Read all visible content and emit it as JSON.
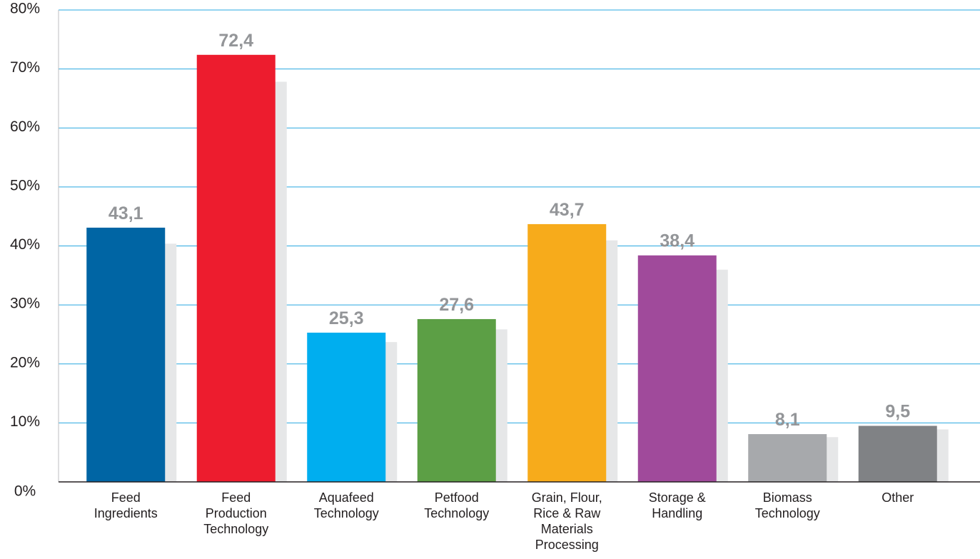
{
  "chart_data": {
    "type": "bar",
    "categories": [
      "Feed Ingredients",
      "Feed Production Technology",
      "Aquafeed Technology",
      "Petfood Technology",
      "Grain, Flour, Rice & Raw Materials Processing",
      "Storage & Handling",
      "Biomass Technology",
      "Other"
    ],
    "values": [
      43.1,
      72.4,
      25.3,
      27.6,
      43.7,
      38.4,
      8.1,
      9.5
    ],
    "value_labels": [
      "43,1",
      "72,4",
      "25,3",
      "27,6",
      "43,7",
      "38,4",
      "8,1",
      "9,5"
    ],
    "colors": [
      "#0065a4",
      "#ed1c2e",
      "#00aeef",
      "#5c9f45",
      "#f7ab1b",
      "#a04a9b",
      "#a7a9ac",
      "#808285"
    ],
    "ylim": [
      0,
      80
    ],
    "yticks": [
      {
        "value": 0,
        "label": "0%"
      },
      {
        "value": 10,
        "label": "10%"
      },
      {
        "value": 20,
        "label": "20%"
      },
      {
        "value": 30,
        "label": "30%"
      },
      {
        "value": 40,
        "label": "40%"
      },
      {
        "value": 50,
        "label": "50%"
      },
      {
        "value": 60,
        "label": "60%"
      },
      {
        "value": 70,
        "label": "70%"
      },
      {
        "value": 80,
        "label": "80%"
      }
    ],
    "grid": true
  }
}
